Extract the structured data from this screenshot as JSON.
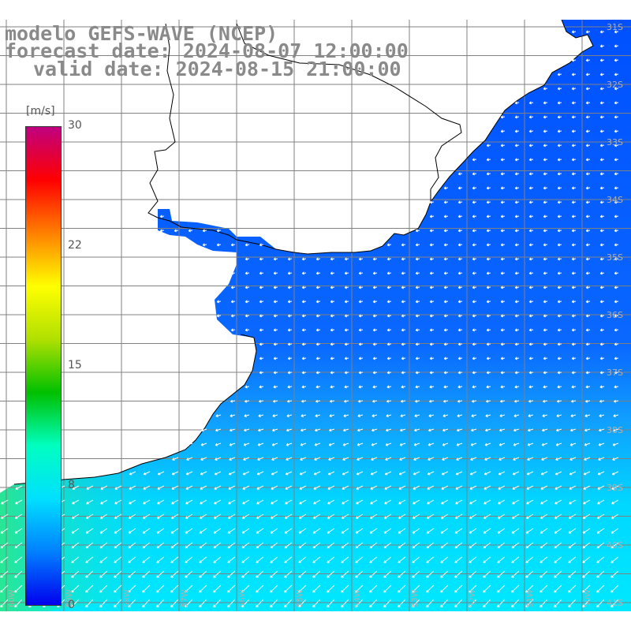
{
  "header": {
    "model_line": "modelo GEFS-WAVE (NCEP)",
    "forecast_line": "forecast date: 2024-08-07 12:00:00",
    "valid_line": "valid date: 2024-08-15 21:00:00"
  },
  "colorbar": {
    "unit": "[m/s]",
    "ticks": [
      "30",
      "22",
      "15",
      "8",
      "0"
    ],
    "stops": [
      "#0000ee",
      "#0080ff",
      "#00e0ff",
      "#00ffc0",
      "#00c000",
      "#b0e000",
      "#ffff00",
      "#ff8000",
      "#ff0000",
      "#c00080"
    ]
  },
  "axes": {
    "lat_labels": [
      "31S",
      "32S",
      "33S",
      "34S",
      "35S",
      "36S",
      "37S",
      "38S",
      "39S",
      "40S",
      "41S"
    ],
    "lon_labels": [
      "60W",
      "59W",
      "58W",
      "57W",
      "56W",
      "55W",
      "54W",
      "53W",
      "52W",
      "51W",
      "50W"
    ]
  },
  "map": {
    "ocean_low": "#0050ff",
    "ocean_mid": "#10a0ff",
    "ocean_high": "#00e0ff",
    "ocean_green": "#30e880",
    "land": "#ffffff",
    "grid": "#808080",
    "coast": "#000000",
    "arrow": "#ffffff"
  }
}
